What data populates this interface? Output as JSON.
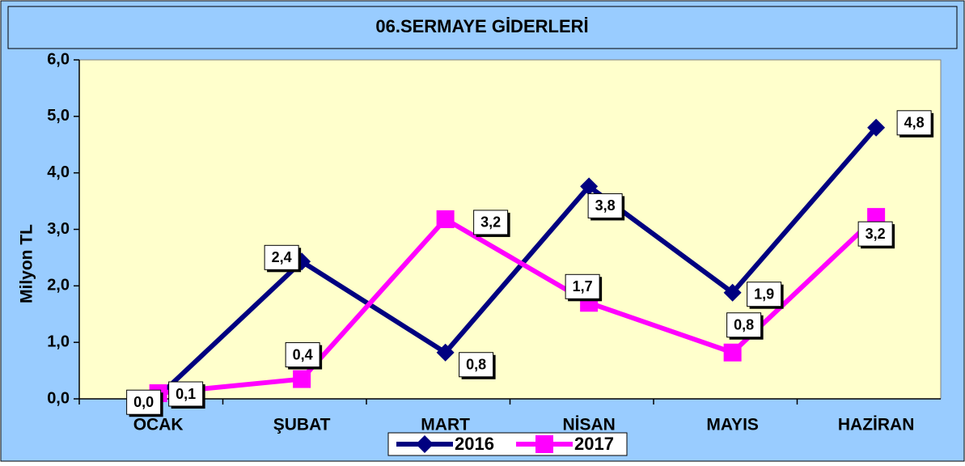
{
  "chart_data": {
    "type": "line",
    "title": "06.SERMAYE GİDERLERİ",
    "y_label": "Milyon TL",
    "categories": [
      "OCAK",
      "ŞUBAT",
      "MART",
      "NİSAN",
      "MAYIS",
      "HAZİRAN"
    ],
    "series": [
      {
        "name": "2016",
        "color": "#000080",
        "values": [
          0.04,
          2.43,
          0.82,
          3.76,
          1.88,
          4.8
        ],
        "value_labels": [
          "0,0",
          "2,4",
          "0,8",
          "3,8",
          "1,9",
          "4,8"
        ]
      },
      {
        "name": "2017",
        "color": "#ff00ff",
        "values": [
          0.1,
          0.35,
          3.18,
          1.7,
          0.82,
          3.22
        ],
        "value_labels": [
          "0,1",
          "0,4",
          "3,2",
          "1,7",
          "0,8",
          "3,2"
        ]
      }
    ],
    "ylim": [
      0,
      6
    ],
    "yticks": [
      {
        "value": 0,
        "label": "0,0"
      },
      {
        "value": 1,
        "label": "1,0"
      },
      {
        "value": 2,
        "label": "2,0"
      },
      {
        "value": 3,
        "label": "3,0"
      },
      {
        "value": 4,
        "label": "4,0"
      },
      {
        "value": 5,
        "label": "5,0"
      },
      {
        "value": 6,
        "label": "6,0"
      }
    ],
    "legend": "bottom"
  }
}
